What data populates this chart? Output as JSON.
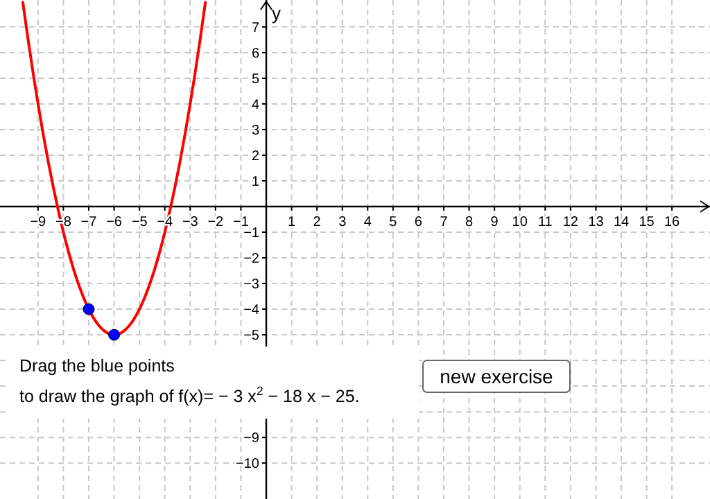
{
  "chart_data": {
    "type": "line",
    "ylabel": "y",
    "xlim": [
      -10.5,
      17.5
    ],
    "ylim": [
      -11.4,
      8.05
    ],
    "xticks": [
      -9,
      -8,
      -7,
      -6,
      -5,
      -4,
      -3,
      -2,
      -1,
      1,
      2,
      3,
      4,
      5,
      6,
      7,
      8,
      9,
      10,
      11,
      12,
      13,
      14,
      15,
      16
    ],
    "yticks": [
      -10,
      -9,
      {
        "value": -8,
        "label": null
      },
      {
        "value": -7,
        "label": null
      },
      {
        "value": -6,
        "label": null
      },
      -5,
      -4,
      -3,
      -2,
      -1,
      1,
      2,
      3,
      4,
      5,
      6,
      7
    ],
    "grid": true,
    "series": [
      {
        "color": "#ff0000",
        "x": [
          -9.6,
          -9.4,
          -9.2,
          -9,
          -8.8,
          -8.6,
          -8.4,
          -8.2,
          -8,
          -7.8,
          -7.6,
          -7.4,
          -7.2,
          -7,
          -6.8,
          -6.6,
          -6.4,
          -6.2,
          -6,
          -5.8,
          -5.6,
          -5.4,
          -5.2,
          -5,
          -4.8,
          -4.6,
          -4.4,
          -4.2,
          -4,
          -3.8,
          -3.6,
          -3.4,
          -3.2,
          -3,
          -2.8,
          -2.6,
          -2.4
        ],
        "values": [
          7.96,
          6.56,
          5.24,
          4,
          2.84,
          1.76,
          0.76,
          -0.16,
          -1,
          -1.76,
          -2.44,
          -3.04,
          -3.56,
          -4,
          -4.36,
          -4.64,
          -4.84,
          -4.96,
          -5,
          -4.96,
          -4.84,
          -4.64,
          -4.36,
          -4,
          -3.56,
          -3.04,
          -2.44,
          -1.76,
          -1,
          -0.16,
          0.76,
          1.76,
          2.84,
          4,
          5.24,
          6.56,
          7.96
        ]
      },
      {
        "type": "scatter",
        "color": "#0000ff",
        "x": [
          -7,
          -6
        ],
        "values": [
          -4,
          -5
        ]
      }
    ],
    "annotations": [
      "Drag the blue points",
      "to draw the graph of f(x)= − 3 x$^{2}$ − 18 x − 25.",
      "new exercise"
    ]
  }
}
